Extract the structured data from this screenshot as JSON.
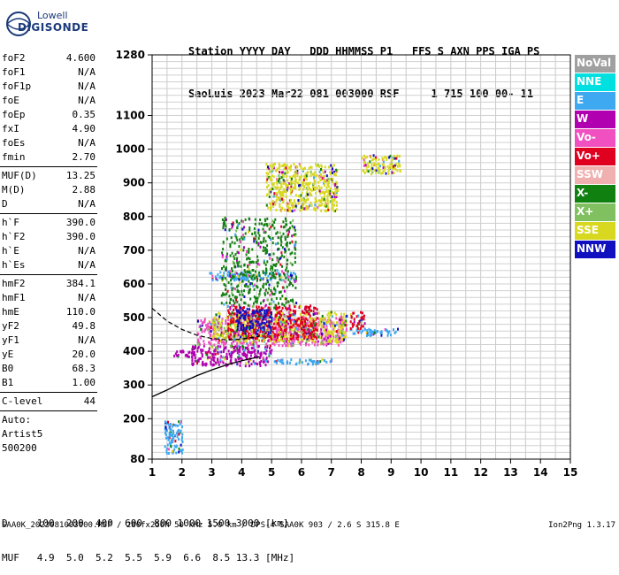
{
  "logo": {
    "line1": "Lowell",
    "line2": "DIGISONDE"
  },
  "header": {
    "line1": "Station YYYY DAY   DDD HHMMSS P1   FFS S AXN PPS IGA PS",
    "line2": "SaoLuis 2023 Mar22 081 003000 RSF     1 715 100 00- 11"
  },
  "params_group1": [
    {
      "label": "foF2",
      "value": "4.600"
    },
    {
      "label": "foF1",
      "value": "N/A"
    },
    {
      "label": "foF1p",
      "value": "N/A"
    },
    {
      "label": "foE",
      "value": "N/A"
    },
    {
      "label": "foEp",
      "value": "0.35"
    },
    {
      "label": "fxI",
      "value": "4.90"
    },
    {
      "label": "foEs",
      "value": "N/A"
    },
    {
      "label": "fmin",
      "value": "2.70"
    }
  ],
  "params_group2": [
    {
      "label": "MUF(D)",
      "value": "13.25"
    },
    {
      "label": "M(D)",
      "value": "2.88"
    },
    {
      "label": "D",
      "value": "N/A"
    }
  ],
  "params_group3": [
    {
      "label": "h`F",
      "value": "390.0"
    },
    {
      "label": "h`F2",
      "value": "390.0"
    },
    {
      "label": "h`E",
      "value": "N/A"
    },
    {
      "label": "h`Es",
      "value": "N/A"
    }
  ],
  "params_group4": [
    {
      "label": "hmF2",
      "value": "384.1"
    },
    {
      "label": "hmF1",
      "value": "N/A"
    },
    {
      "label": "hmE",
      "value": "110.0"
    },
    {
      "label": "yF2",
      "value": "49.8"
    },
    {
      "label": "yF1",
      "value": "N/A"
    },
    {
      "label": "yE",
      "value": "20.0"
    },
    {
      "label": "B0",
      "value": "68.3"
    },
    {
      "label": "B1",
      "value": "1.00"
    }
  ],
  "params_group5": [
    {
      "label": "C-level",
      "value": "44"
    }
  ],
  "autoscaling": {
    "line1": "Auto:",
    "line2": "Artist5",
    "line3": "500200"
  },
  "bottom_table": {
    "row1": "D     100  200  400  600  800 1000 1500 3000 [km]",
    "row2": "MUF   4.9  5.0  5.2  5.5  5.9  6.6  8.5 13.3 [MHz]"
  },
  "footer": "SAA0K_2023081003000.RSF / 280fx256h 50 kHz 5.0 km / DPS-4 SAA0K 903 / 2.6 S 315.8 E",
  "version": "Ion2Png 1.3.17",
  "legend": [
    {
      "label": "NoVal",
      "color": "#a0a0a0"
    },
    {
      "label": "NNE",
      "color": "#00e0e0"
    },
    {
      "label": "E",
      "color": "#3ea8f0"
    },
    {
      "label": "W",
      "color": "#b000b0"
    },
    {
      "label": "Vo-",
      "color": "#f050c0"
    },
    {
      "label": "Vo+",
      "color": "#e00020"
    },
    {
      "label": "SSW",
      "color": "#f0b0b0"
    },
    {
      "label": "X-",
      "color": "#108010"
    },
    {
      "label": "X+",
      "color": "#80c060"
    },
    {
      "label": "SSE",
      "color": "#d8d820"
    },
    {
      "label": "NNW",
      "color": "#1010c0"
    }
  ],
  "chart_data": {
    "type": "scatter",
    "title": "",
    "xlabel": "",
    "ylabel": "",
    "xlim": [
      1,
      15
    ],
    "ylim": [
      80,
      1280
    ],
    "x_ticks": [
      "1",
      "2",
      "3",
      "4",
      "5",
      "6",
      "7",
      "8",
      "9",
      "10",
      "11",
      "12",
      "13",
      "14",
      "15"
    ],
    "y_ticks": [
      {
        "value": 80,
        "label": "80"
      },
      {
        "value": 200,
        "label": "200"
      },
      {
        "value": 300,
        "label": "300"
      },
      {
        "value": 400,
        "label": "400"
      },
      {
        "value": 500,
        "label": "500"
      },
      {
        "value": 600,
        "label": "600"
      },
      {
        "value": 700,
        "label": "700"
      },
      {
        "value": 800,
        "label": "800"
      },
      {
        "value": 900,
        "label": "900"
      },
      {
        "value": 1000,
        "label": "1000"
      },
      {
        "value": 1100,
        "label": "1100"
      },
      {
        "value": 1280,
        "label": "1280"
      }
    ],
    "grid": true,
    "echo_clusters": [
      {
        "freq": [
          1.7,
          2.3
        ],
        "height": [
          385,
          405
        ],
        "color": "#b000b0"
      },
      {
        "freq": [
          2.3,
          5.0
        ],
        "height": [
          360,
          420
        ],
        "color": "#b000b0"
      },
      {
        "freq": [
          2.5,
          7.5
        ],
        "height": [
          420,
          500
        ],
        "color": "#f050c0"
      },
      {
        "freq": [
          3.0,
          7.5
        ],
        "height": [
          430,
          520
        ],
        "color": "#d8d820"
      },
      {
        "freq": [
          3.5,
          6.5
        ],
        "height": [
          440,
          540
        ],
        "color": "#e00020"
      },
      {
        "freq": [
          3.8,
          5.0
        ],
        "height": [
          455,
          530
        ],
        "color": "#1010c0"
      },
      {
        "freq": [
          5.0,
          7.0
        ],
        "height": [
          365,
          380
        ],
        "color": "#3ea8f0"
      },
      {
        "freq": [
          2.9,
          5.8
        ],
        "height": [
          615,
          640
        ],
        "color": "#3ea8f0"
      },
      {
        "freq": [
          8.0,
          9.3
        ],
        "height": [
          930,
          985
        ],
        "color": "#d8d820"
      },
      {
        "freq": [
          7.6,
          9.2
        ],
        "height": [
          450,
          470
        ],
        "color": "#3ea8f0"
      },
      {
        "freq": [
          7.6,
          8.1
        ],
        "height": [
          470,
          520
        ],
        "color": "#e00020"
      },
      {
        "freq": [
          3.3,
          5.8
        ],
        "height": [
          540,
          800
        ],
        "color": "#108010"
      },
      {
        "freq": [
          4.8,
          7.2
        ],
        "height": [
          820,
          960
        ],
        "color": "#d8d820"
      },
      {
        "freq": [
          1.4,
          2.0
        ],
        "height": [
          100,
          200
        ],
        "color": "#3ea8f0"
      }
    ],
    "profile_curve": [
      {
        "freq": 1.0,
        "height": 265
      },
      {
        "freq": 1.5,
        "height": 285
      },
      {
        "freq": 2.0,
        "height": 308
      },
      {
        "freq": 2.5,
        "height": 328
      },
      {
        "freq": 3.0,
        "height": 345
      },
      {
        "freq": 3.5,
        "height": 360
      },
      {
        "freq": 4.0,
        "height": 372
      },
      {
        "freq": 4.6,
        "height": 384
      }
    ],
    "virtual_curve": [
      {
        "freq": 1.0,
        "height": 528
      },
      {
        "freq": 1.5,
        "height": 490
      },
      {
        "freq": 2.0,
        "height": 465
      },
      {
        "freq": 2.5,
        "height": 448
      },
      {
        "freq": 3.0,
        "height": 438
      },
      {
        "freq": 3.5,
        "height": 434
      },
      {
        "freq": 4.0,
        "height": 436
      },
      {
        "freq": 4.6,
        "height": 445
      }
    ]
  }
}
